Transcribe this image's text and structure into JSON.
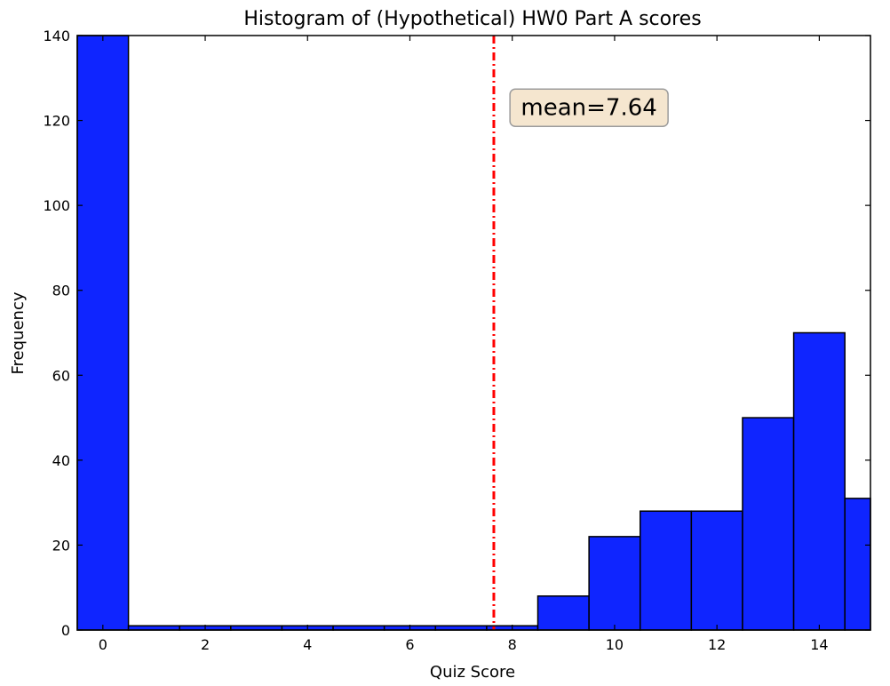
{
  "chart_data": {
    "type": "bar",
    "title": "Histogram of (Hypothetical) HW0 Part A scores",
    "xlabel": "Quiz Score",
    "ylabel": "Frequency",
    "xlim": [
      -0.5,
      15
    ],
    "ylim": [
      0,
      140
    ],
    "x_ticks": [
      "0",
      "2",
      "4",
      "6",
      "8",
      "10",
      "12",
      "14"
    ],
    "y_ticks": [
      "0",
      "20",
      "40",
      "60",
      "80",
      "100",
      "120",
      "140"
    ],
    "bins": [
      {
        "x": 0,
        "value": 140
      },
      {
        "x": 1,
        "value": 1
      },
      {
        "x": 2,
        "value": 1
      },
      {
        "x": 3,
        "value": 1
      },
      {
        "x": 4,
        "value": 1
      },
      {
        "x": 5,
        "value": 1
      },
      {
        "x": 6,
        "value": 1
      },
      {
        "x": 7,
        "value": 1
      },
      {
        "x": 8,
        "value": 1
      },
      {
        "x": 9,
        "value": 8
      },
      {
        "x": 10,
        "value": 22
      },
      {
        "x": 11,
        "value": 28
      },
      {
        "x": 12,
        "value": 28
      },
      {
        "x": 13,
        "value": 50
      },
      {
        "x": 14,
        "value": 70
      },
      {
        "x": 15,
        "value": 31
      }
    ],
    "bar_color": "#0f25ff",
    "mean_line": {
      "x": 7.64,
      "color": "#ff0000",
      "style": "dash-dot"
    },
    "annotation": {
      "text": "mean=7.64",
      "bg_color": "#f5e6cf",
      "border_color": "#9c9c9c",
      "x": 9.5,
      "y": 123
    },
    "grid": false,
    "legend": "none"
  }
}
